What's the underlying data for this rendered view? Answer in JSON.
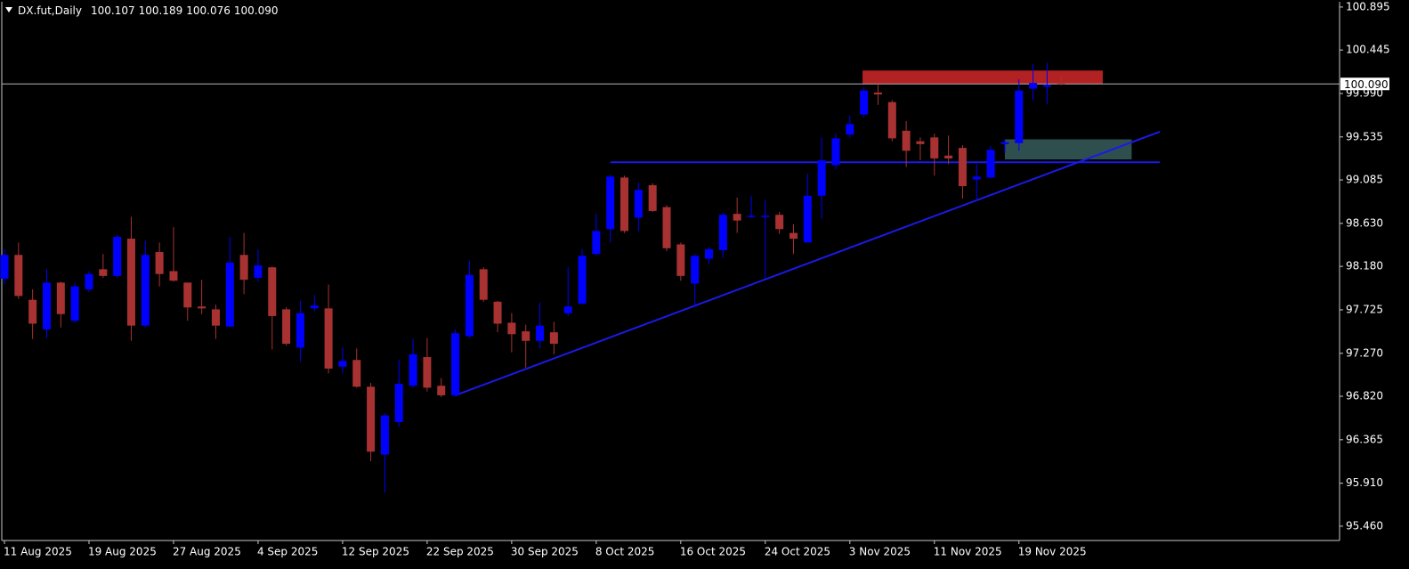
{
  "chart_data": {
    "type": "candlestick",
    "title": "DX.fut,Daily",
    "header_values": [
      "100.107",
      "100.189",
      "100.076",
      "100.090"
    ],
    "categories": [
      "11 Aug 2025",
      null,
      null,
      null,
      null,
      null,
      "19 Aug 2025",
      null,
      null,
      null,
      null,
      null,
      "27 Aug 2025",
      null,
      null,
      null,
      null,
      null,
      "4 Sep 2025",
      null,
      null,
      null,
      null,
      null,
      "12 Sep 2025",
      null,
      null,
      null,
      null,
      null,
      "22 Sep 2025",
      null,
      null,
      null,
      null,
      null,
      "30 Sep 2025",
      null,
      null,
      null,
      null,
      null,
      "8 Oct 2025",
      null,
      null,
      null,
      null,
      null,
      "16 Oct 2025",
      null,
      null,
      null,
      null,
      null,
      "24 Oct 2025",
      null,
      null,
      null,
      null,
      null,
      "3 Nov 2025",
      null,
      null,
      null,
      null,
      null,
      "11 Nov 2025",
      null,
      null,
      null,
      null,
      null,
      "19 Nov 2025",
      null,
      null,
      null
    ],
    "open": [
      98.05,
      98.3,
      97.83,
      97.52,
      98.01,
      97.61,
      97.94,
      98.15,
      98.08,
      98.47,
      97.56,
      98.33,
      98.13,
      98.01,
      97.76,
      97.73,
      97.55,
      98.3,
      98.06,
      98.17,
      97.73,
      97.33,
      97.74,
      97.74,
      97.13,
      97.2,
      96.92,
      96.21,
      96.55,
      96.93,
      97.23,
      96.93,
      96.83,
      97.45,
      98.15,
      97.81,
      97.59,
      97.5,
      97.4,
      97.49,
      97.69,
      97.79,
      98.31,
      98.57,
      99.11,
      98.69,
      99.03,
      98.8,
      98.41,
      98.0,
      98.26,
      98.35,
      98.73,
      98.7,
      98.7,
      98.72,
      98.53,
      98.43,
      98.92,
      99.24,
      99.56,
      99.77,
      100.0,
      99.9,
      99.6,
      99.49,
      99.53,
      99.34,
      99.42,
      99.09,
      99.11,
      99.46,
      99.47,
      100.04,
      100.06,
      100.107
    ],
    "high": [
      98.36,
      98.43,
      97.94,
      98.15,
      98.02,
      98.01,
      98.13,
      98.31,
      98.51,
      98.7,
      98.45,
      98.43,
      98.59,
      98.01,
      98.04,
      97.78,
      98.49,
      98.53,
      98.36,
      98.18,
      97.75,
      97.82,
      97.88,
      97.99,
      97.33,
      97.32,
      96.96,
      96.64,
      97.2,
      97.42,
      97.43,
      97.01,
      97.52,
      98.24,
      98.17,
      97.82,
      97.69,
      97.57,
      97.8,
      97.6,
      98.17,
      98.36,
      98.73,
      99.14,
      99.13,
      99.06,
      99.05,
      98.82,
      98.43,
      98.31,
      98.38,
      98.74,
      98.9,
      98.92,
      98.87,
      98.75,
      98.62,
      99.15,
      99.53,
      99.57,
      99.76,
      100.06,
      100.09,
      99.92,
      99.7,
      99.53,
      99.57,
      99.55,
      99.45,
      99.25,
      99.44,
      99.51,
      100.14,
      100.3,
      100.31,
      100.189
    ],
    "low": [
      97.99,
      97.84,
      97.42,
      97.43,
      97.54,
      97.59,
      97.91,
      98.06,
      98.06,
      97.4,
      97.54,
      97.97,
      98.02,
      97.61,
      97.68,
      97.42,
      97.55,
      97.89,
      98.02,
      97.31,
      97.35,
      97.18,
      97.71,
      97.06,
      97.06,
      96.91,
      96.14,
      95.81,
      96.5,
      96.91,
      96.87,
      96.81,
      96.82,
      97.43,
      97.81,
      97.49,
      97.28,
      97.12,
      97.32,
      97.26,
      97.66,
      97.78,
      98.29,
      98.43,
      98.53,
      98.55,
      98.75,
      98.34,
      98.03,
      97.75,
      98.2,
      98.27,
      98.53,
      98.69,
      98.06,
      98.52,
      98.31,
      98.43,
      98.68,
      99.2,
      99.53,
      99.74,
      99.87,
      99.49,
      99.22,
      99.29,
      99.13,
      99.25,
      98.89,
      98.87,
      99.1,
      99.37,
      99.39,
      99.92,
      99.88,
      100.076
    ],
    "close": [
      98.3,
      97.87,
      97.58,
      98.01,
      97.68,
      97.97,
      98.1,
      98.08,
      98.49,
      97.56,
      98.3,
      98.1,
      98.03,
      97.75,
      97.74,
      97.56,
      98.22,
      98.04,
      98.19,
      97.66,
      97.37,
      97.69,
      97.77,
      97.11,
      97.19,
      96.92,
      96.24,
      96.62,
      96.95,
      97.26,
      96.91,
      96.83,
      97.48,
      98.09,
      97.83,
      97.58,
      97.47,
      97.4,
      97.56,
      97.37,
      97.76,
      98.29,
      98.55,
      99.12,
      98.55,
      98.98,
      98.76,
      98.37,
      98.08,
      98.29,
      98.36,
      98.72,
      98.66,
      98.71,
      98.71,
      98.57,
      98.47,
      98.92,
      99.29,
      99.52,
      99.67,
      100.02,
      99.98,
      99.52,
      99.39,
      99.46,
      99.31,
      99.31,
      99.02,
      99.12,
      99.4,
      99.48,
      100.02,
      100.1,
      100.08,
      100.09
    ],
    "bull_color": "#0000ff",
    "bear_color": "#a83232",
    "ylim": [
      95.31,
      100.95
    ],
    "yticks": [
      100.895,
      100.445,
      {
        "value": 99.99,
        "label": "99.990"
      },
      99.535,
      99.085,
      {
        "value": 98.63,
        "label": "98.630"
      },
      {
        "value": 98.18,
        "label": "98.180"
      },
      97.725,
      {
        "value": 97.27,
        "label": "97.270"
      },
      {
        "value": 96.82,
        "label": "96.820"
      },
      96.365,
      {
        "value": 95.91,
        "label": "95.910"
      },
      {
        "value": 95.46,
        "label": "95.460"
      }
    ],
    "current_price": {
      "value": 100.09,
      "label": "100.090"
    },
    "objects": [
      {
        "type": "rectangle",
        "color": "#b22222",
        "x": [
          60.9,
          77.95
        ],
        "y": [
          100.09,
          100.23
        ]
      },
      {
        "type": "rectangle",
        "color": "#2f4f4f",
        "x": [
          71,
          80
        ],
        "y": [
          99.3,
          99.51
        ]
      },
      {
        "type": "line",
        "color": "#1a1ae6",
        "x": [
          43,
          82
        ],
        "y": [
          99.27,
          99.27
        ]
      },
      {
        "type": "line",
        "color": "#1a1ae6",
        "x": [
          32,
          82
        ],
        "y": [
          96.83,
          99.59
        ]
      }
    ]
  }
}
